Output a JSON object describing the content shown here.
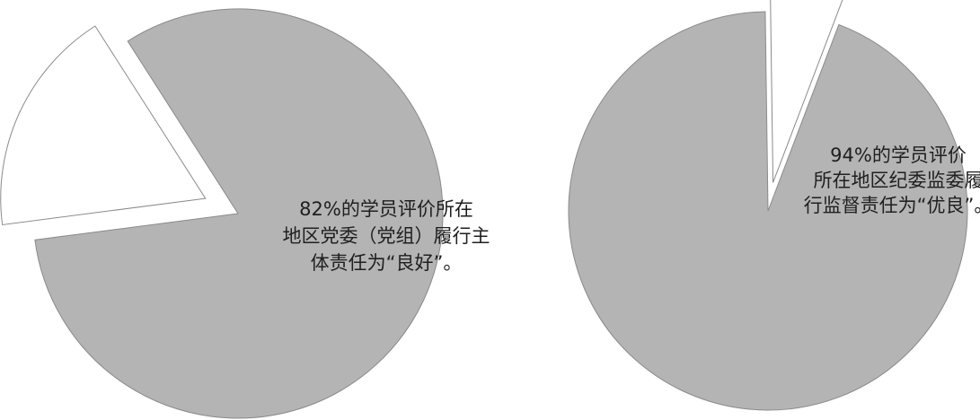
{
  "chart_data": [
    {
      "type": "pie",
      "title": "",
      "slices": [
        {
          "value": 82,
          "label_lines": [
            "82%的学员评价所在",
            "地区党委（党组）履行主",
            "体责任为“良好”。"
          ],
          "color": "#b4b4b4"
        },
        {
          "value": 18,
          "label_lines": [],
          "color": "#ffffff",
          "exploded": true
        }
      ]
    },
    {
      "type": "pie",
      "title": "",
      "slices": [
        {
          "value": 94,
          "label_lines": [
            "94%的学员评价",
            "所在地区纪委监委履",
            "行监督责任为“优良”。"
          ],
          "color": "#b4b4b4"
        },
        {
          "value": 6,
          "label_lines": [],
          "color": "#ffffff",
          "exploded": true
        }
      ]
    }
  ]
}
